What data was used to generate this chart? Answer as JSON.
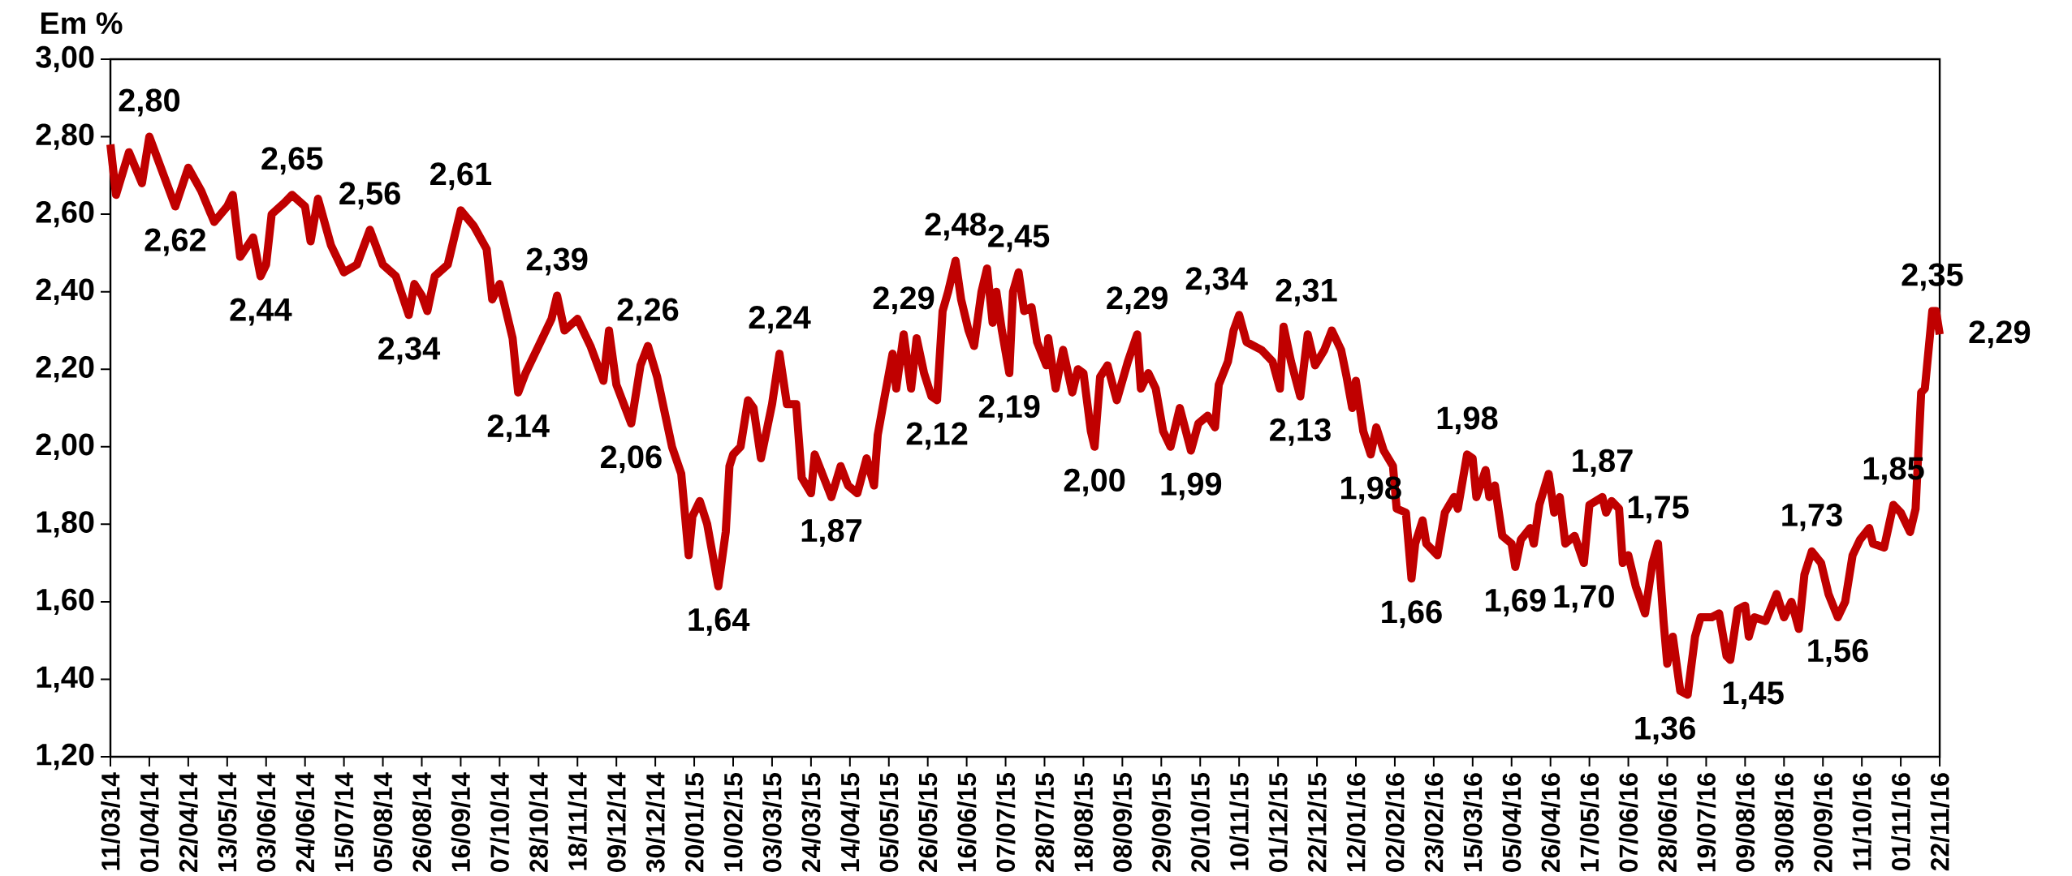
{
  "chart_data": {
    "type": "line",
    "ylabel": "Em %",
    "color": "#c00000",
    "line_style": "solid",
    "xlim": [
      "2014-03-11",
      "2016-11-22"
    ],
    "ylim": [
      1.2,
      3.0
    ],
    "yticks": [
      {
        "value": 1.2,
        "label": "1,20"
      },
      {
        "value": 1.4,
        "label": "1,40"
      },
      {
        "value": 1.6,
        "label": "1,60"
      },
      {
        "value": 1.8,
        "label": "1,80"
      },
      {
        "value": 2.0,
        "label": "2,00"
      },
      {
        "value": 2.2,
        "label": "2,20"
      },
      {
        "value": 2.4,
        "label": "2,40"
      },
      {
        "value": 2.6,
        "label": "2,60"
      },
      {
        "value": 2.8,
        "label": "2,80"
      },
      {
        "value": 3.0,
        "label": "3,00"
      }
    ],
    "xticks": [
      {
        "value": "2014-03-11",
        "label": "11/03/14"
      },
      {
        "value": "2014-04-01",
        "label": "01/04/14"
      },
      {
        "value": "2014-04-22",
        "label": "22/04/14"
      },
      {
        "value": "2014-05-13",
        "label": "13/05/14"
      },
      {
        "value": "2014-06-03",
        "label": "03/06/14"
      },
      {
        "value": "2014-06-24",
        "label": "24/06/14"
      },
      {
        "value": "2014-07-15",
        "label": "15/07/14"
      },
      {
        "value": "2014-08-05",
        "label": "05/08/14"
      },
      {
        "value": "2014-08-26",
        "label": "26/08/14"
      },
      {
        "value": "2014-09-16",
        "label": "16/09/14"
      },
      {
        "value": "2014-10-07",
        "label": "07/10/14"
      },
      {
        "value": "2014-10-28",
        "label": "28/10/14"
      },
      {
        "value": "2014-11-18",
        "label": "18/11/14"
      },
      {
        "value": "2014-12-09",
        "label": "09/12/14"
      },
      {
        "value": "2014-12-30",
        "label": "30/12/14"
      },
      {
        "value": "2015-01-20",
        "label": "20/01/15"
      },
      {
        "value": "2015-02-10",
        "label": "10/02/15"
      },
      {
        "value": "2015-03-03",
        "label": "03/03/15"
      },
      {
        "value": "2015-03-24",
        "label": "24/03/15"
      },
      {
        "value": "2015-04-14",
        "label": "14/04/15"
      },
      {
        "value": "2015-05-05",
        "label": "05/05/15"
      },
      {
        "value": "2015-05-26",
        "label": "26/05/15"
      },
      {
        "value": "2015-06-16",
        "label": "16/06/15"
      },
      {
        "value": "2015-07-07",
        "label": "07/07/15"
      },
      {
        "value": "2015-07-28",
        "label": "28/07/15"
      },
      {
        "value": "2015-08-18",
        "label": "18/08/15"
      },
      {
        "value": "2015-09-08",
        "label": "08/09/15"
      },
      {
        "value": "2015-09-29",
        "label": "29/09/15"
      },
      {
        "value": "2015-10-20",
        "label": "20/10/15"
      },
      {
        "value": "2015-11-10",
        "label": "10/11/15"
      },
      {
        "value": "2015-12-01",
        "label": "01/12/15"
      },
      {
        "value": "2015-12-22",
        "label": "22/12/15"
      },
      {
        "value": "2016-01-12",
        "label": "12/01/16"
      },
      {
        "value": "2016-02-02",
        "label": "02/02/16"
      },
      {
        "value": "2016-02-23",
        "label": "23/02/16"
      },
      {
        "value": "2016-03-15",
        "label": "15/03/16"
      },
      {
        "value": "2016-04-05",
        "label": "05/04/16"
      },
      {
        "value": "2016-04-26",
        "label": "26/04/16"
      },
      {
        "value": "2016-05-17",
        "label": "17/05/16"
      },
      {
        "value": "2016-06-07",
        "label": "07/06/16"
      },
      {
        "value": "2016-06-28",
        "label": "28/06/16"
      },
      {
        "value": "2016-07-19",
        "label": "19/07/16"
      },
      {
        "value": "2016-08-09",
        "label": "09/08/16"
      },
      {
        "value": "2016-08-30",
        "label": "30/08/16"
      },
      {
        "value": "2016-09-20",
        "label": "20/09/16"
      },
      {
        "value": "2016-10-11",
        "label": "11/10/16"
      },
      {
        "value": "2016-11-01",
        "label": "01/11/16"
      },
      {
        "value": "2016-11-22",
        "label": "22/11/16"
      }
    ],
    "x": [
      "2014-03-11",
      "2014-03-14",
      "2014-03-21",
      "2014-03-28",
      "2014-04-01",
      "2014-04-08",
      "2014-04-15",
      "2014-04-22",
      "2014-04-29",
      "2014-05-06",
      "2014-05-13",
      "2014-05-16",
      "2014-05-20",
      "2014-05-27",
      "2014-05-31",
      "2014-06-03",
      "2014-06-06",
      "2014-06-13",
      "2014-06-17",
      "2014-06-24",
      "2014-06-27",
      "2014-07-01",
      "2014-07-08",
      "2014-07-15",
      "2014-07-22",
      "2014-07-29",
      "2014-08-05",
      "2014-08-12",
      "2014-08-19",
      "2014-08-22",
      "2014-08-26",
      "2014-08-29",
      "2014-09-02",
      "2014-09-09",
      "2014-09-16",
      "2014-09-23",
      "2014-09-30",
      "2014-10-03",
      "2014-10-07",
      "2014-10-14",
      "2014-10-17",
      "2014-10-21",
      "2014-10-28",
      "2014-11-04",
      "2014-11-07",
      "2014-11-11",
      "2014-11-18",
      "2014-11-25",
      "2014-12-02",
      "2014-12-05",
      "2014-12-09",
      "2014-12-17",
      "2014-12-22",
      "2014-12-26",
      "2014-12-31",
      "2015-01-08",
      "2015-01-13",
      "2015-01-17",
      "2015-01-19",
      "2015-01-23",
      "2015-01-27",
      "2015-02-02",
      "2015-02-06",
      "2015-02-08",
      "2015-02-10",
      "2015-02-14",
      "2015-02-18",
      "2015-02-21",
      "2015-02-25",
      "2015-03-03",
      "2015-03-07",
      "2015-03-11",
      "2015-03-16",
      "2015-03-19",
      "2015-03-24",
      "2015-03-26",
      "2015-04-04",
      "2015-04-09",
      "2015-04-13",
      "2015-04-18",
      "2015-04-23",
      "2015-04-27",
      "2015-04-29",
      "2015-05-02",
      "2015-05-07",
      "2015-05-09",
      "2015-05-13",
      "2015-05-17",
      "2015-05-20",
      "2015-05-24",
      "2015-05-28",
      "2015-05-31",
      "2015-06-03",
      "2015-06-06",
      "2015-06-10",
      "2015-06-13",
      "2015-06-17",
      "2015-06-20",
      "2015-06-24",
      "2015-06-27",
      "2015-06-30",
      "2015-07-02",
      "2015-07-05",
      "2015-07-09",
      "2015-07-11",
      "2015-07-14",
      "2015-07-17",
      "2015-07-21",
      "2015-07-24",
      "2015-07-29",
      "2015-07-30",
      "2015-08-03",
      "2015-08-07",
      "2015-08-12",
      "2015-08-15",
      "2015-08-18",
      "2015-08-22",
      "2015-08-24",
      "2015-08-27",
      "2015-08-31",
      "2015-09-05",
      "2015-09-11",
      "2015-09-16",
      "2015-09-18",
      "2015-09-22",
      "2015-09-26",
      "2015-09-30",
      "2015-10-04",
      "2015-10-09",
      "2015-10-15",
      "2015-10-19",
      "2015-10-24",
      "2015-10-28",
      "2015-10-30",
      "2015-11-04",
      "2015-11-07",
      "2015-11-10",
      "2015-11-14",
      "2015-11-22",
      "2015-11-28",
      "2015-12-02",
      "2015-12-04",
      "2015-12-08",
      "2015-12-13",
      "2015-12-17",
      "2015-12-21",
      "2015-12-26",
      "2015-12-30",
      "2016-01-04",
      "2016-01-07",
      "2016-01-10",
      "2016-01-12",
      "2016-01-16",
      "2016-01-20",
      "2016-01-23",
      "2016-01-27",
      "2016-02-01",
      "2016-02-03",
      "2016-02-08",
      "2016-02-11",
      "2016-02-13",
      "2016-02-17",
      "2016-02-19",
      "2016-02-25",
      "2016-02-29",
      "2016-03-05",
      "2016-03-07",
      "2016-03-12",
      "2016-03-15",
      "2016-03-17",
      "2016-03-22",
      "2016-03-24",
      "2016-03-27",
      "2016-03-31",
      "2016-04-05",
      "2016-04-07",
      "2016-04-10",
      "2016-04-15",
      "2016-04-17",
      "2016-04-20",
      "2016-04-25",
      "2016-04-28",
      "2016-05-01",
      "2016-05-04",
      "2016-05-09",
      "2016-05-14",
      "2016-05-17",
      "2016-05-24",
      "2016-05-26",
      "2016-05-29",
      "2016-06-02",
      "2016-06-04",
      "2016-06-07",
      "2016-06-11",
      "2016-06-16",
      "2016-06-20",
      "2016-06-23",
      "2016-06-26",
      "2016-06-28",
      "2016-07-01",
      "2016-07-05",
      "2016-07-09",
      "2016-07-13",
      "2016-07-16",
      "2016-07-22",
      "2016-07-26",
      "2016-07-30",
      "2016-08-01",
      "2016-08-05",
      "2016-08-09",
      "2016-08-11",
      "2016-08-14",
      "2016-08-20",
      "2016-08-26",
      "2016-08-30",
      "2016-09-03",
      "2016-09-07",
      "2016-09-10",
      "2016-09-14",
      "2016-09-19",
      "2016-09-23",
      "2016-09-28",
      "2016-10-02",
      "2016-10-06",
      "2016-10-10",
      "2016-10-15",
      "2016-10-17",
      "2016-10-23",
      "2016-10-28",
      "2016-11-01",
      "2016-11-06",
      "2016-11-09",
      "2016-11-12",
      "2016-11-14",
      "2016-11-16",
      "2016-11-18",
      "2016-11-20",
      "2016-11-22"
    ],
    "values": [
      2.78,
      2.65,
      2.76,
      2.68,
      2.8,
      2.71,
      2.62,
      2.72,
      2.66,
      2.58,
      2.62,
      2.65,
      2.49,
      2.54,
      2.44,
      2.47,
      2.6,
      2.63,
      2.65,
      2.62,
      2.53,
      2.64,
      2.52,
      2.45,
      2.47,
      2.56,
      2.47,
      2.44,
      2.34,
      2.42,
      2.39,
      2.35,
      2.44,
      2.47,
      2.61,
      2.57,
      2.51,
      2.38,
      2.42,
      2.28,
      2.14,
      2.19,
      2.26,
      2.33,
      2.39,
      2.3,
      2.33,
      2.26,
      2.17,
      2.3,
      2.16,
      2.06,
      2.21,
      2.26,
      2.18,
      2.0,
      1.93,
      1.72,
      1.82,
      1.86,
      1.8,
      1.64,
      1.78,
      1.95,
      1.98,
      2.0,
      2.12,
      2.1,
      1.97,
      2.11,
      2.24,
      2.11,
      2.11,
      1.92,
      1.88,
      1.98,
      1.87,
      1.95,
      1.9,
      1.88,
      1.97,
      1.9,
      2.03,
      2.11,
      2.24,
      2.15,
      2.29,
      2.15,
      2.28,
      2.19,
      2.13,
      2.12,
      2.35,
      2.4,
      2.48,
      2.38,
      2.3,
      2.26,
      2.4,
      2.46,
      2.32,
      2.4,
      2.3,
      2.19,
      2.4,
      2.45,
      2.35,
      2.36,
      2.27,
      2.21,
      2.28,
      2.15,
      2.25,
      2.14,
      2.2,
      2.19,
      2.04,
      2.0,
      2.18,
      2.21,
      2.12,
      2.22,
      2.29,
      2.15,
      2.19,
      2.15,
      2.04,
      2.0,
      2.1,
      1.99,
      2.06,
      2.08,
      2.05,
      2.16,
      2.22,
      2.3,
      2.34,
      2.27,
      2.25,
      2.22,
      2.15,
      2.31,
      2.22,
      2.13,
      2.29,
      2.21,
      2.25,
      2.3,
      2.25,
      2.18,
      2.1,
      2.17,
      2.04,
      1.98,
      2.05,
      1.99,
      1.95,
      1.84,
      1.83,
      1.66,
      1.75,
      1.81,
      1.75,
      1.72,
      1.83,
      1.87,
      1.84,
      1.98,
      1.97,
      1.87,
      1.94,
      1.87,
      1.9,
      1.77,
      1.75,
      1.69,
      1.76,
      1.79,
      1.75,
      1.85,
      1.93,
      1.83,
      1.87,
      1.75,
      1.77,
      1.7,
      1.85,
      1.87,
      1.83,
      1.86,
      1.84,
      1.7,
      1.72,
      1.64,
      1.57,
      1.7,
      1.75,
      1.55,
      1.44,
      1.51,
      1.37,
      1.36,
      1.51,
      1.56,
      1.56,
      1.57,
      1.46,
      1.45,
      1.58,
      1.59,
      1.51,
      1.56,
      1.55,
      1.62,
      1.56,
      1.6,
      1.53,
      1.67,
      1.73,
      1.7,
      1.62,
      1.56,
      1.6,
      1.72,
      1.76,
      1.79,
      1.75,
      1.74,
      1.85,
      1.83,
      1.78,
      1.84,
      2.14,
      2.15,
      2.25,
      2.35,
      2.35,
      2.29
    ],
    "annotations": [
      {
        "text": "2,80",
        "x": "2014-04-01",
        "y": 2.8
      },
      {
        "text": "2,62",
        "x": "2014-04-15",
        "y": 2.62
      },
      {
        "text": "2,44",
        "x": "2014-05-31",
        "y": 2.44
      },
      {
        "text": "2,65",
        "x": "2014-06-17",
        "y": 2.65
      },
      {
        "text": "2,56",
        "x": "2014-07-29",
        "y": 2.56
      },
      {
        "text": "2,34",
        "x": "2014-08-19",
        "y": 2.34
      },
      {
        "text": "2,61",
        "x": "2014-09-16",
        "y": 2.61
      },
      {
        "text": "2,14",
        "x": "2014-10-17",
        "y": 2.14
      },
      {
        "text": "2,39",
        "x": "2014-11-07",
        "y": 2.39
      },
      {
        "text": "2,06",
        "x": "2014-12-17",
        "y": 2.06
      },
      {
        "text": "2,26",
        "x": "2014-12-26",
        "y": 2.26
      },
      {
        "text": "1,64",
        "x": "2015-02-02",
        "y": 1.64
      },
      {
        "text": "2,24",
        "x": "2015-03-07",
        "y": 2.24
      },
      {
        "text": "1,87",
        "x": "2015-04-04",
        "y": 1.87
      },
      {
        "text": "2,29",
        "x": "2015-05-13",
        "y": 2.29
      },
      {
        "text": "2,12",
        "x": "2015-05-31",
        "y": 2.12
      },
      {
        "text": "2,48",
        "x": "2015-06-10",
        "y": 2.48
      },
      {
        "text": "2,45",
        "x": "2015-07-14",
        "y": 2.45
      },
      {
        "text": "2,19",
        "x": "2015-07-09",
        "y": 2.19
      },
      {
        "text": "2,00",
        "x": "2015-08-24",
        "y": 2.0
      },
      {
        "text": "2,29",
        "x": "2015-09-16",
        "y": 2.29
      },
      {
        "text": "1,99",
        "x": "2015-10-15",
        "y": 1.99
      },
      {
        "text": "2,34",
        "x": "2015-11-10",
        "y": 2.34
      },
      {
        "text": "2,31",
        "x": "2015-12-04",
        "y": 2.31
      },
      {
        "text": "2,13",
        "x": "2015-12-13",
        "y": 2.13
      },
      {
        "text": "1,98",
        "x": "2016-01-20",
        "y": 1.98
      },
      {
        "text": "1,66",
        "x": "2016-02-11",
        "y": 1.66
      },
      {
        "text": "1,98",
        "x": "2016-03-12",
        "y": 1.98
      },
      {
        "text": "1,69",
        "x": "2016-04-07",
        "y": 1.69
      },
      {
        "text": "1,70",
        "x": "2016-05-14",
        "y": 1.7
      },
      {
        "text": "1,87",
        "x": "2016-05-24",
        "y": 1.87
      },
      {
        "text": "1,75",
        "x": "2016-06-23",
        "y": 1.75
      },
      {
        "text": "1,36",
        "x": "2016-07-09",
        "y": 1.36
      },
      {
        "text": "1,45",
        "x": "2016-08-01",
        "y": 1.45
      },
      {
        "text": "1,73",
        "x": "2016-09-14",
        "y": 1.73
      },
      {
        "text": "1,56",
        "x": "2016-09-28",
        "y": 1.56
      },
      {
        "text": "1,85",
        "x": "2016-10-28",
        "y": 1.85
      },
      {
        "text": "2,35",
        "x": "2016-11-18",
        "y": 2.35
      },
      {
        "text": "2,29",
        "x": "2016-11-22",
        "y": 2.29
      }
    ]
  }
}
